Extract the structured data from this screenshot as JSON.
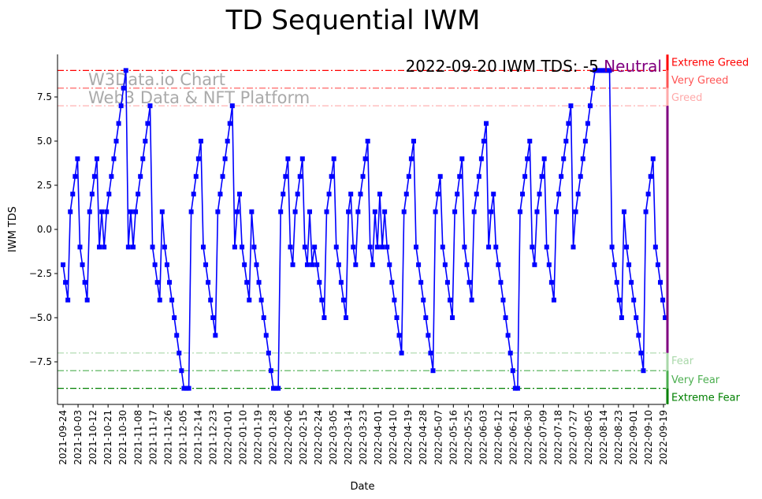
{
  "chart_data": {
    "type": "line",
    "title": "TD Sequential IWM",
    "xlabel": "Date",
    "ylabel": "IWM TDS",
    "ylim": [
      -9.9,
      9.9
    ],
    "yticks": [
      -7.5,
      -5.0,
      -2.5,
      0.0,
      2.5,
      5.0,
      7.5
    ],
    "ytick_labels": [
      "−7.5",
      "−5.0",
      "−2.5",
      "0.0",
      "2.5",
      "5.0",
      "7.5"
    ],
    "x_start": "2021-09-24",
    "x_end": "2022-09-20",
    "xtick_labels": [
      "2021-09-24",
      "2021-10-03",
      "2021-10-12",
      "2021-10-21",
      "2021-10-30",
      "2021-11-08",
      "2021-11-17",
      "2021-11-26",
      "2021-12-05",
      "2021-12-14",
      "2021-12-23",
      "2022-01-01",
      "2022-01-10",
      "2022-01-19",
      "2022-01-28",
      "2022-02-06",
      "2022-02-15",
      "2022-02-24",
      "2022-03-05",
      "2022-03-14",
      "2022-03-23",
      "2022-04-01",
      "2022-04-10",
      "2022-04-19",
      "2022-04-28",
      "2022-05-07",
      "2022-05-16",
      "2022-05-25",
      "2022-06-03",
      "2022-06-12",
      "2022-06-21",
      "2022-06-30",
      "2022-07-09",
      "2022-07-18",
      "2022-07-27",
      "2022-08-05",
      "2022-08-14",
      "2022-08-23",
      "2022-09-01",
      "2022-09-10",
      "2022-09-19"
    ],
    "series": [
      {
        "name": "IWM TDS",
        "color": "#0000ff",
        "values": [
          -2,
          -3,
          -4,
          1,
          2,
          3,
          4,
          -1,
          -2,
          -3,
          -4,
          1,
          2,
          3,
          4,
          -1,
          1,
          -1,
          1,
          2,
          3,
          4,
          5,
          6,
          7,
          8,
          9,
          -1,
          1,
          -1,
          1,
          2,
          3,
          4,
          5,
          6,
          7,
          -1,
          -2,
          -3,
          -4,
          1,
          -1,
          -2,
          -3,
          -4,
          -5,
          -6,
          -7,
          -8,
          -9,
          -9,
          -9,
          1,
          2,
          3,
          4,
          5,
          -1,
          -2,
          -3,
          -4,
          -5,
          -6,
          1,
          2,
          3,
          4,
          5,
          6,
          7,
          -1,
          1,
          2,
          -1,
          -2,
          -3,
          -4,
          1,
          -1,
          -2,
          -3,
          -4,
          -5,
          -6,
          -7,
          -8,
          -9,
          -9,
          -9,
          1,
          2,
          3,
          4,
          -1,
          -2,
          1,
          2,
          3,
          4,
          -1,
          -2,
          1,
          -2,
          -1,
          -2,
          -3,
          -4,
          -5,
          1,
          2,
          3,
          4,
          -1,
          -2,
          -3,
          -4,
          -5,
          1,
          2,
          -1,
          -2,
          1,
          2,
          3,
          4,
          5,
          -1,
          -2,
          1,
          -1,
          2,
          -1,
          1,
          -1,
          -2,
          -3,
          -4,
          -5,
          -6,
          -7,
          1,
          2,
          3,
          4,
          5,
          -1,
          -2,
          -3,
          -4,
          -5,
          -6,
          -7,
          -8,
          1,
          2,
          3,
          -1,
          -2,
          -3,
          -4,
          -5,
          1,
          2,
          3,
          4,
          -1,
          -2,
          -3,
          -4,
          1,
          2,
          3,
          4,
          5,
          6,
          -1,
          1,
          2,
          -1,
          -2,
          -3,
          -4,
          -5,
          -6,
          -7,
          -8,
          -9,
          -9,
          1,
          2,
          3,
          4,
          5,
          -1,
          -2,
          1,
          2,
          3,
          4,
          -1,
          -2,
          -3,
          -4,
          1,
          2,
          3,
          4,
          5,
          6,
          7,
          -1,
          1,
          2,
          3,
          4,
          5,
          6,
          7,
          8,
          9,
          9,
          9,
          9,
          9,
          9,
          9,
          -1,
          -2,
          -3,
          -4,
          -5,
          1,
          -1,
          -2,
          -3,
          -4,
          -5,
          -6,
          -7,
          -8,
          1,
          2,
          3,
          4,
          -1,
          -2,
          -3,
          -4,
          -5
        ]
      }
    ],
    "levels": [
      {
        "label": "Extreme Greed",
        "value": 9,
        "color": "#ff0000"
      },
      {
        "label": "Very Greed",
        "value": 8,
        "color": "#ff5555"
      },
      {
        "label": "Greed",
        "value": 7,
        "color": "#ffaaaa"
      },
      {
        "label": "Fear",
        "value": -7,
        "color": "#aad8aa"
      },
      {
        "label": "Very Fear",
        "value": -8,
        "color": "#4caf50"
      },
      {
        "label": "Extreme Fear",
        "value": -9,
        "color": "#008000"
      }
    ],
    "neutral_color": "#800080",
    "annotation": {
      "text": "2022-09-20 IWM TDS: -5 ",
      "status": "Neutral",
      "status_color": "#800080"
    },
    "watermark": [
      "W3Data.io Chart",
      "Web3 Data & NFT Platform"
    ],
    "grid": false
  }
}
